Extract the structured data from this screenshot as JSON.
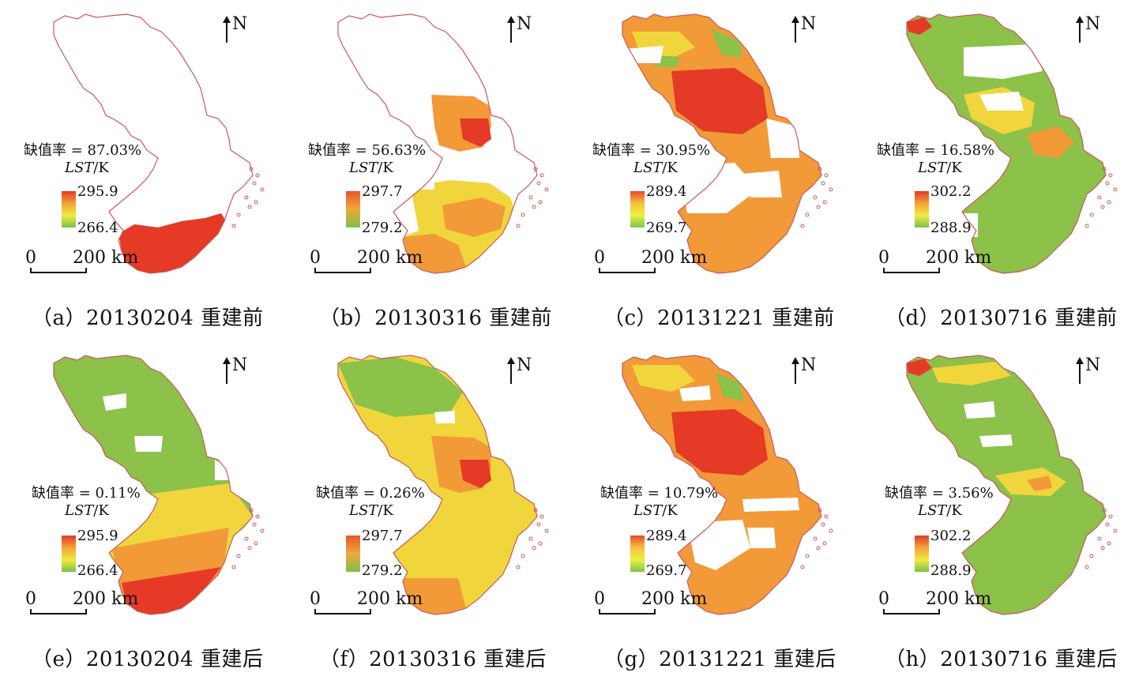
{
  "north_label": "N",
  "lst_label_italic": "LST",
  "lst_label_unit": "/K",
  "scale": {
    "zero": "0",
    "distance": "200 km"
  },
  "panels": [
    {
      "caption": "（a）20130204 重建前",
      "missing": "缺值率 = 87.03%",
      "max": "295.9",
      "min": "266.4"
    },
    {
      "caption": "（b）20130316 重建前",
      "missing": "缺值率 = 56.63%",
      "max": "297.7",
      "min": "279.2"
    },
    {
      "caption": "（c）20131221 重建前",
      "missing": "缺值率 = 30.95%",
      "max": "289.4",
      "min": "269.7"
    },
    {
      "caption": "（d）20130716 重建前",
      "missing": "缺值率 = 16.58%",
      "max": "302.2",
      "min": "288.9"
    },
    {
      "caption": "（e）20130204 重建后",
      "missing": "缺值率 = 0.11%",
      "max": "295.9",
      "min": "266.4"
    },
    {
      "caption": "（f）20130316 重建后",
      "missing": "缺值率 = 0.26%",
      "max": "297.7",
      "min": "279.2"
    },
    {
      "caption": "（g）20131221 重建后",
      "missing": "缺值率 = 10.79%",
      "max": "289.4",
      "min": "269.7"
    },
    {
      "caption": "（h）20130716 重建后",
      "missing": "缺值率 = 3.56%",
      "max": "302.2",
      "min": "288.9"
    }
  ],
  "colors": {
    "boundary": "#c8595a",
    "hot": "#e43a26",
    "warm": "#f29a38",
    "mild": "#f0d63c",
    "cool": "#8cc14a",
    "gap": "#ffffff"
  }
}
